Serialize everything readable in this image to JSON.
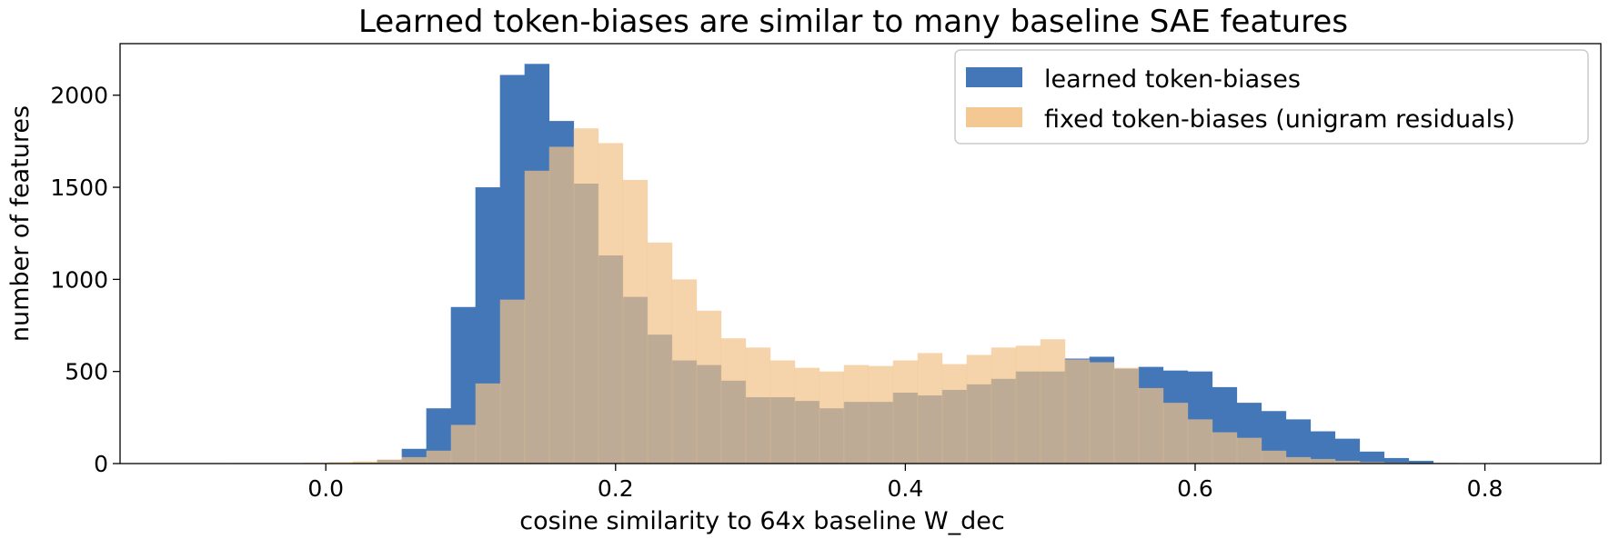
{
  "chart_data": {
    "type": "bar",
    "title": "Learned token-biases are similar to many baseline SAE features",
    "xlabel": "cosine similarity to 64x baseline W_dec",
    "ylabel": "number of features",
    "xlim": [
      -0.142,
      0.88
    ],
    "ylim": [
      0,
      2280
    ],
    "xticks": [
      0.0,
      0.2,
      0.4,
      0.6,
      0.8
    ],
    "xtick_labels": [
      "0.0",
      "0.2",
      "0.4",
      "0.6",
      "0.8"
    ],
    "yticks": [
      0,
      500,
      1000,
      1500,
      2000
    ],
    "ytick_labels": [
      "0",
      "500",
      "1000",
      "1500",
      "2000"
    ],
    "legend_position": "top-right",
    "series": [
      {
        "name": "learned token-biases",
        "color": "#4477b8",
        "bin_start": 0.0185,
        "bin_width": 0.01695,
        "values": [
          5,
          20,
          80,
          300,
          850,
          1500,
          2110,
          2170,
          1860,
          1520,
          1130,
          905,
          700,
          560,
          535,
          450,
          360,
          360,
          340,
          300,
          335,
          335,
          385,
          370,
          400,
          430,
          460,
          500,
          500,
          570,
          580,
          515,
          525,
          505,
          500,
          415,
          330,
          285,
          240,
          175,
          135,
          65,
          30,
          15,
          3
        ]
      },
      {
        "name": "fixed token-biases (unigram residuals)",
        "color": "#f2c287",
        "bin_start": -0.0662,
        "bin_width": 0.01695,
        "values": [
          3,
          3,
          3,
          5,
          8,
          12,
          22,
          35,
          70,
          210,
          435,
          890,
          1590,
          1720,
          1820,
          1740,
          1540,
          1200,
          1000,
          830,
          680,
          630,
          560,
          520,
          500,
          535,
          530,
          560,
          600,
          540,
          590,
          630,
          640,
          675,
          565,
          550,
          520,
          410,
          330,
          240,
          170,
          140,
          70,
          35,
          25,
          15,
          8,
          5,
          3
        ]
      }
    ]
  }
}
